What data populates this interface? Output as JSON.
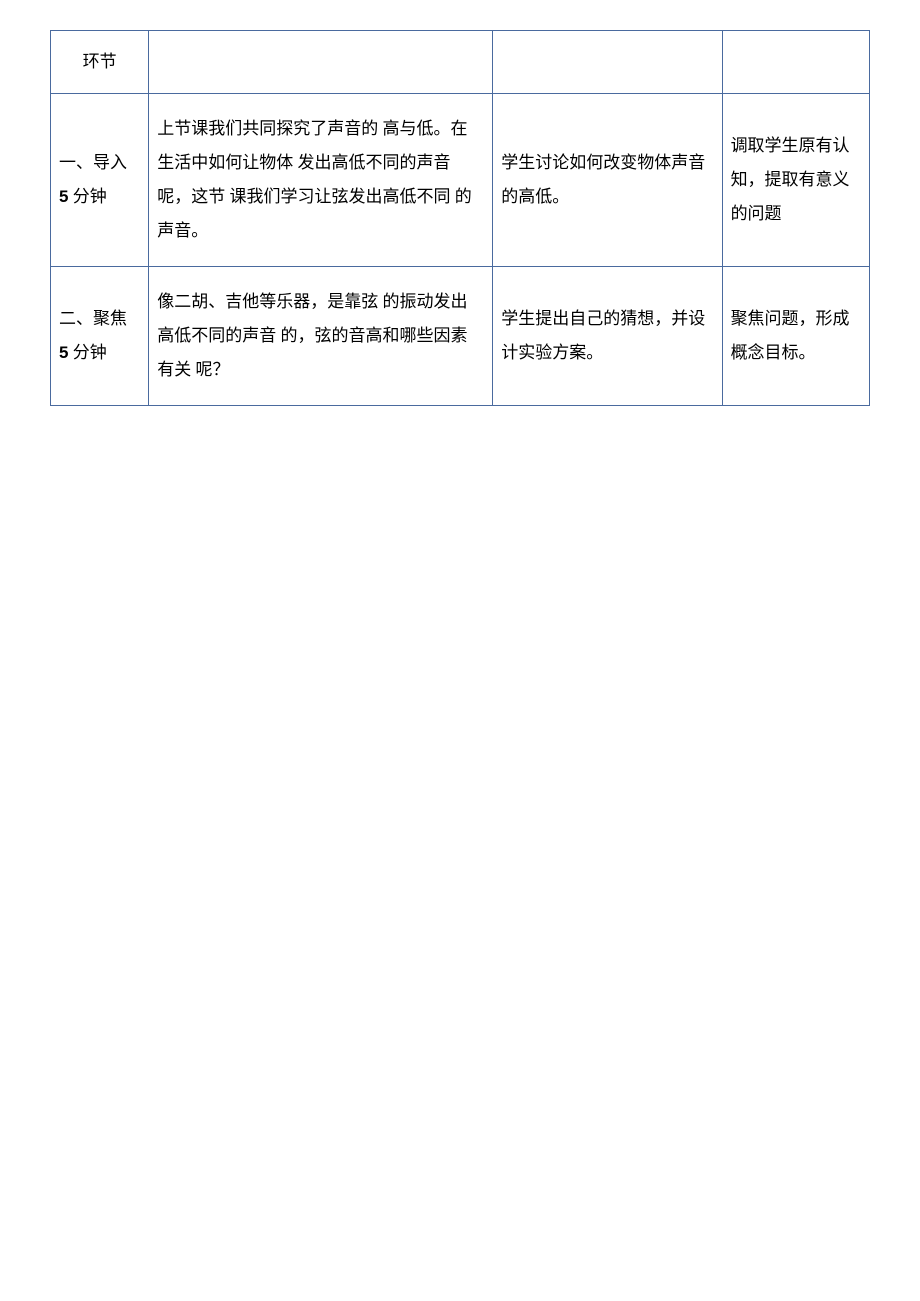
{
  "table": {
    "border_color": "#4a6a9e",
    "background_color": "#ffffff",
    "text_color": "#000000",
    "font_family": "SimSun",
    "font_size_pt": 13,
    "line_height": 2.0,
    "columns": [
      {
        "width_pct": 12
      },
      {
        "width_pct": 42
      },
      {
        "width_pct": 28
      },
      {
        "width_pct": 18
      }
    ],
    "rows": [
      {
        "cells": {
          "c1": "环节",
          "c2": "",
          "c3": "",
          "c4": ""
        }
      },
      {
        "cells": {
          "c1_prefix": "一、导入",
          "c1_num": "5",
          "c1_suffix": " 分钟",
          "c2": "上节课我们共同探究了声音的 高与低。在生活中如何让物体 发出高低不同的声音呢，这节 课我们学习让弦发出高低不同 的声音。",
          "c3": "学生讨论如何改变物体声音的高低。",
          "c4": "调取学生原有认知，提取有意义的问题"
        }
      },
      {
        "cells": {
          "c1_prefix": "二、聚焦",
          "c1_num": "5",
          "c1_suffix": " 分钟",
          "c2": "像二胡、吉他等乐器，是靠弦 的振动发出高低不同的声音 的，弦的音高和哪些因素有关 呢？",
          "c3": "学生提出自己的猜想，并设计实验方案。",
          "c4": "聚焦问题，形成概念目标。"
        }
      }
    ]
  }
}
